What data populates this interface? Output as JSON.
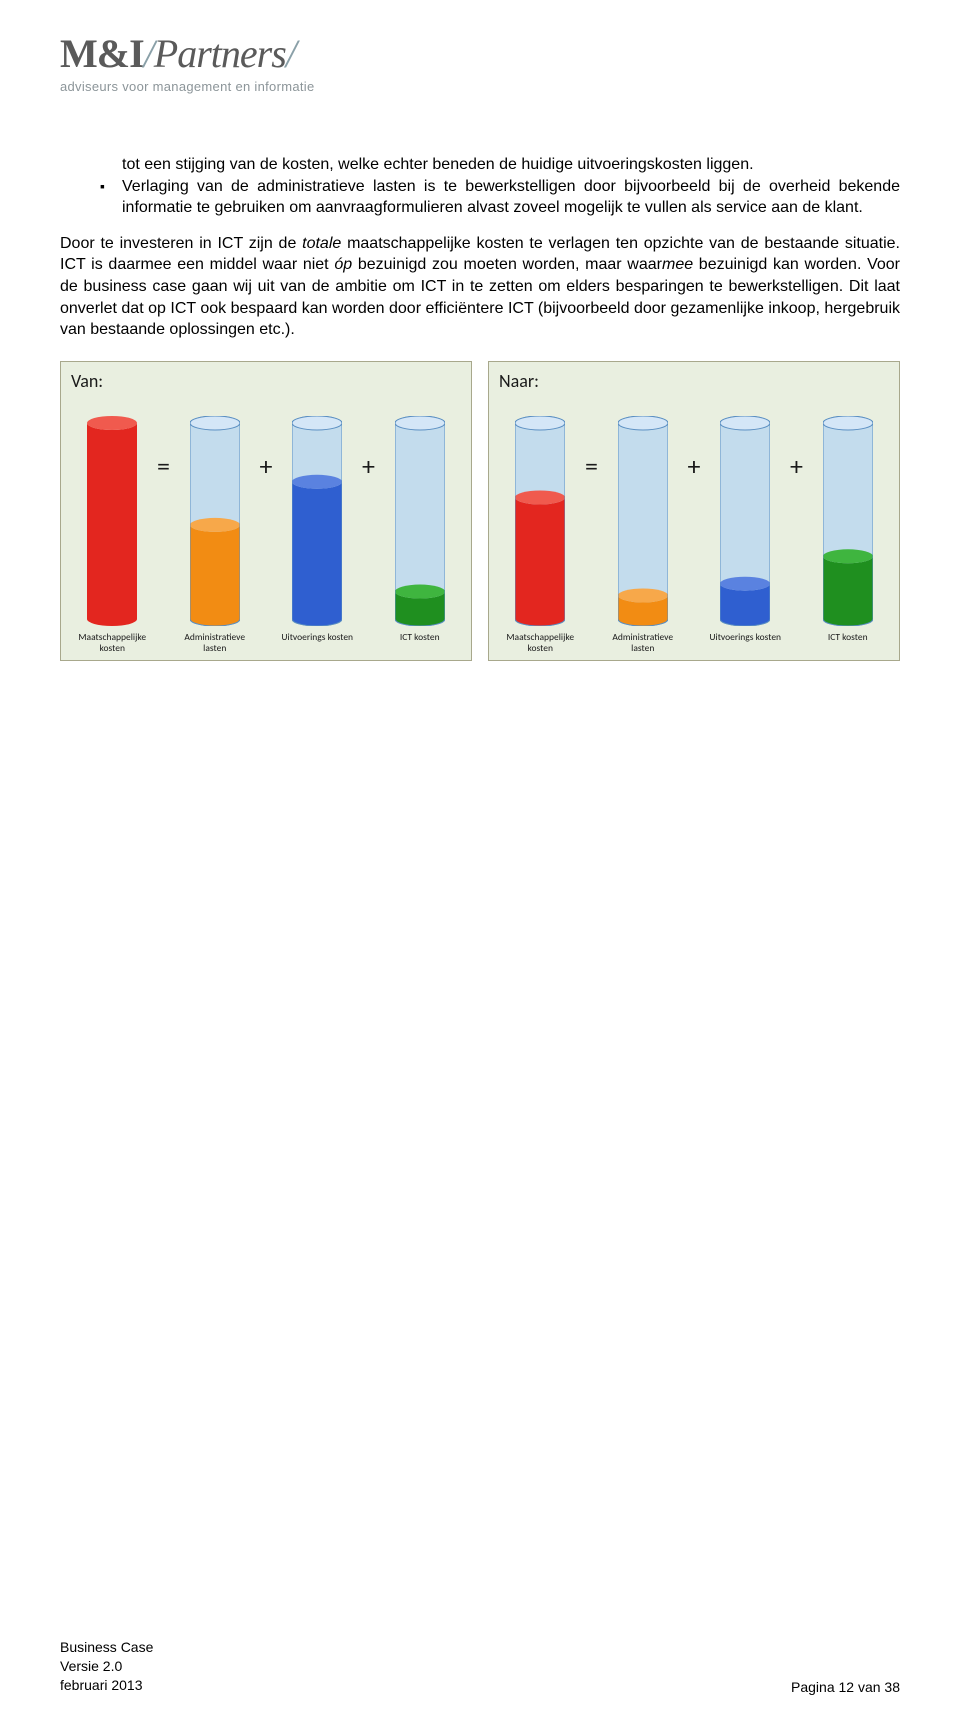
{
  "logo": {
    "main_left": "M&I",
    "slash": "/",
    "main_right": "Partners",
    "trailing_slash": "/",
    "subtitle": "adviseurs voor management en informatie"
  },
  "text": {
    "bullet1": "tot een stijging van de kosten, welke echter beneden de huidige uitvoeringskosten liggen.",
    "bullet2": "Verlaging van de administratieve lasten is te bewerkstelligen door bijvoorbeeld bij de overheid bekende informatie te gebruiken om aanvraagformulieren alvast zoveel mogelijk te vullen als service aan de klant.",
    "para1": "Door te investeren in ICT zijn de ",
    "para1_em1": "totale",
    "para1_b": " maatschappelijke kosten te verlagen ten opzichte van de bestaande situatie. ICT is daarmee een middel waar niet ",
    "para1_em2": "óp",
    "para1_c": " bezuinigd zou moeten worden, maar waar",
    "para1_em3": "mee",
    "para1_d": " bezuinigd kan worden. Voor de business case gaan wij uit van de ambitie om ICT in te zetten om elders besparingen te bewerkstelligen. Dit laat onverlet dat op ICT ook bespaard kan worden door efficiëntere ICT (bijvoorbeeld door gezamenlijke inkoop, hergebruik van bestaande oplossingen etc.)."
  },
  "diagram": {
    "container_fill": "#b6d5f2",
    "container_stroke": "#5b8fc2",
    "panel_bg": "#e9efe0",
    "panel_border": "#a8a88c",
    "cylinder_total_height": 210,
    "cylinder_width": 50,
    "ellipse_ry": 7,
    "panels": [
      {
        "title": "Van:",
        "ops": [
          "=",
          "+",
          "+"
        ],
        "cylinders": [
          {
            "label": "Maatschappelijke kosten",
            "fill_pct": 100,
            "fill_color": "#e3261f",
            "fill_top": "#f05a4e",
            "has_container": false
          },
          {
            "label": "Administratieve lasten",
            "fill_pct": 48,
            "fill_color": "#f28c13",
            "fill_top": "#f7a84a",
            "has_container": true
          },
          {
            "label": "Uitvoerings kosten",
            "fill_pct": 70,
            "fill_color": "#2f5fd0",
            "fill_top": "#5a82e0",
            "has_container": true
          },
          {
            "label": "ICT kosten",
            "fill_pct": 14,
            "fill_color": "#1f8f1f",
            "fill_top": "#3fb53f",
            "has_container": true
          }
        ]
      },
      {
        "title": "Naar:",
        "ops": [
          "=",
          "+",
          "+"
        ],
        "cylinders": [
          {
            "label": "Maatschappelijke kosten",
            "fill_pct": 62,
            "fill_color": "#e3261f",
            "fill_top": "#f05a4e",
            "has_container": true
          },
          {
            "label": "Administratieve lasten",
            "fill_pct": 12,
            "fill_color": "#f28c13",
            "fill_top": "#f7a84a",
            "has_container": true
          },
          {
            "label": "Uitvoerings kosten",
            "fill_pct": 18,
            "fill_color": "#2f5fd0",
            "fill_top": "#5a82e0",
            "has_container": true
          },
          {
            "label": "ICT kosten",
            "fill_pct": 32,
            "fill_color": "#1f8f1f",
            "fill_top": "#3fb53f",
            "has_container": true
          }
        ]
      }
    ]
  },
  "footer": {
    "left1": "Business Case",
    "left2": "Versie 2.0",
    "left3": "februari 2013",
    "right": "Pagina 12 van 38"
  }
}
